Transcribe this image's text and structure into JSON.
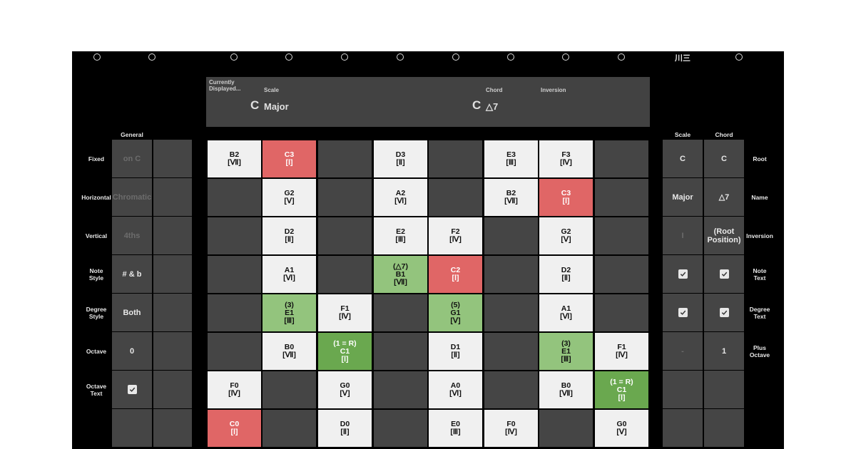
{
  "top_icons": {
    "menu_icon": "川三"
  },
  "display": {
    "currently_label": "Currently Displayed...",
    "scale_label": "Scale",
    "chord_label": "Chord",
    "inversion_label": "Inversion",
    "scale_root": "C",
    "scale_name": "Major",
    "chord_root": "C",
    "chord_name": "△7",
    "inversion_value": ""
  },
  "general": {
    "title": "General",
    "rows": [
      {
        "label": "Fixed",
        "value": "on C",
        "muted": true
      },
      {
        "label": "Horizontal",
        "value": "Chromatic",
        "muted": true
      },
      {
        "label": "Vertical",
        "value": "4ths",
        "muted": true
      },
      {
        "label": "Note Style",
        "value": "# & b",
        "muted": false
      },
      {
        "label": "Degree Style",
        "value": "Both",
        "muted": false
      },
      {
        "label": "Octave",
        "value": "0",
        "muted": false
      },
      {
        "label": "Octave Text",
        "value": "",
        "checkbox": true
      }
    ]
  },
  "right": {
    "scale_title": "Scale",
    "chord_title": "Chord",
    "rows": [
      {
        "label": "Root",
        "scale": "C",
        "chord": "C"
      },
      {
        "label": "Name",
        "scale": "Major",
        "chord": "△7"
      },
      {
        "label": "Inversion",
        "scale": "I",
        "chord": "(Root Position)",
        "scale_muted": true
      },
      {
        "label": "Note Text",
        "scale_checkbox": true,
        "chord_checkbox": true
      },
      {
        "label": "Degree Text",
        "scale_checkbox": true,
        "chord_checkbox": true
      },
      {
        "label": "Plus Octave",
        "scale": "-",
        "chord": "1",
        "scale_muted": true
      },
      {
        "label": "",
        "scale": "",
        "chord": ""
      },
      {
        "label": "",
        "scale": "",
        "chord": ""
      }
    ]
  },
  "grid": [
    [
      {
        "t": "white",
        "l": [
          "B2",
          "[Ⅶ]"
        ]
      },
      {
        "t": "red",
        "l": [
          "C3",
          "[Ⅰ]"
        ]
      },
      {
        "t": "dark"
      },
      {
        "t": "white",
        "l": [
          "D3",
          "[Ⅱ]"
        ]
      },
      {
        "t": "dark"
      },
      {
        "t": "white",
        "l": [
          "E3",
          "[Ⅲ]"
        ]
      },
      {
        "t": "white",
        "l": [
          "F3",
          "[Ⅳ]"
        ]
      },
      {
        "t": "dark"
      }
    ],
    [
      {
        "t": "dark"
      },
      {
        "t": "white",
        "l": [
          "G2",
          "[Ⅴ]"
        ]
      },
      {
        "t": "dark"
      },
      {
        "t": "white",
        "l": [
          "A2",
          "[Ⅵ]"
        ]
      },
      {
        "t": "dark"
      },
      {
        "t": "white",
        "l": [
          "B2",
          "[Ⅶ]"
        ]
      },
      {
        "t": "red",
        "l": [
          "C3",
          "[Ⅰ]"
        ]
      },
      {
        "t": "dark"
      }
    ],
    [
      {
        "t": "dark"
      },
      {
        "t": "white",
        "l": [
          "D2",
          "[Ⅱ]"
        ]
      },
      {
        "t": "dark"
      },
      {
        "t": "white",
        "l": [
          "E2",
          "[Ⅲ]"
        ]
      },
      {
        "t": "white",
        "l": [
          "F2",
          "[Ⅳ]"
        ]
      },
      {
        "t": "dark"
      },
      {
        "t": "white",
        "l": [
          "G2",
          "[Ⅴ]"
        ]
      },
      {
        "t": "dark"
      }
    ],
    [
      {
        "t": "dark"
      },
      {
        "t": "white",
        "l": [
          "A1",
          "[Ⅵ]"
        ]
      },
      {
        "t": "dark"
      },
      {
        "t": "green",
        "l": [
          "(△7)",
          "B1",
          "[Ⅶ]"
        ]
      },
      {
        "t": "red",
        "l": [
          "C2",
          "[Ⅰ]"
        ]
      },
      {
        "t": "dark"
      },
      {
        "t": "white",
        "l": [
          "D2",
          "[Ⅱ]"
        ]
      },
      {
        "t": "dark"
      }
    ],
    [
      {
        "t": "dark"
      },
      {
        "t": "green",
        "l": [
          "(3)",
          "E1",
          "[Ⅲ]"
        ]
      },
      {
        "t": "white",
        "l": [
          "F1",
          "[Ⅳ]"
        ]
      },
      {
        "t": "dark"
      },
      {
        "t": "green",
        "l": [
          "(5)",
          "G1",
          "[Ⅴ]"
        ]
      },
      {
        "t": "dark"
      },
      {
        "t": "white",
        "l": [
          "A1",
          "[Ⅵ]"
        ]
      },
      {
        "t": "dark"
      }
    ],
    [
      {
        "t": "dark"
      },
      {
        "t": "white",
        "l": [
          "B0",
          "[Ⅶ]"
        ]
      },
      {
        "t": "green2",
        "l": [
          "(1 = R)",
          "C1",
          "[Ⅰ]"
        ]
      },
      {
        "t": "dark"
      },
      {
        "t": "white",
        "l": [
          "D1",
          "[Ⅱ]"
        ]
      },
      {
        "t": "dark"
      },
      {
        "t": "green",
        "l": [
          "(3)",
          "E1",
          "[Ⅲ]"
        ]
      },
      {
        "t": "white",
        "l": [
          "F1",
          "[Ⅳ]"
        ]
      }
    ],
    [
      {
        "t": "white",
        "l": [
          "F0",
          "[Ⅳ]"
        ]
      },
      {
        "t": "dark"
      },
      {
        "t": "white",
        "l": [
          "G0",
          "[Ⅴ]"
        ]
      },
      {
        "t": "dark"
      },
      {
        "t": "white",
        "l": [
          "A0",
          "[Ⅵ]"
        ]
      },
      {
        "t": "dark"
      },
      {
        "t": "white",
        "l": [
          "B0",
          "[Ⅶ]"
        ]
      },
      {
        "t": "green2",
        "l": [
          "(1 = R)",
          "C1",
          "[Ⅰ]"
        ]
      }
    ],
    [
      {
        "t": "red",
        "l": [
          "C0",
          "[Ⅰ]"
        ]
      },
      {
        "t": "dark"
      },
      {
        "t": "white",
        "l": [
          "D0",
          "[Ⅱ]"
        ]
      },
      {
        "t": "dark"
      },
      {
        "t": "white",
        "l": [
          "E0",
          "[Ⅲ]"
        ]
      },
      {
        "t": "white",
        "l": [
          "F0",
          "[Ⅳ]"
        ]
      },
      {
        "t": "dark"
      },
      {
        "t": "white",
        "l": [
          "G0",
          "[Ⅴ]"
        ]
      }
    ]
  ],
  "colors": {
    "panel": "#000000",
    "cell_dark": "#454545",
    "note_white": "#f0f0f0",
    "root_red": "#e06666",
    "chord_green": "#93c47d",
    "chord_root_green": "#6aa84f"
  }
}
